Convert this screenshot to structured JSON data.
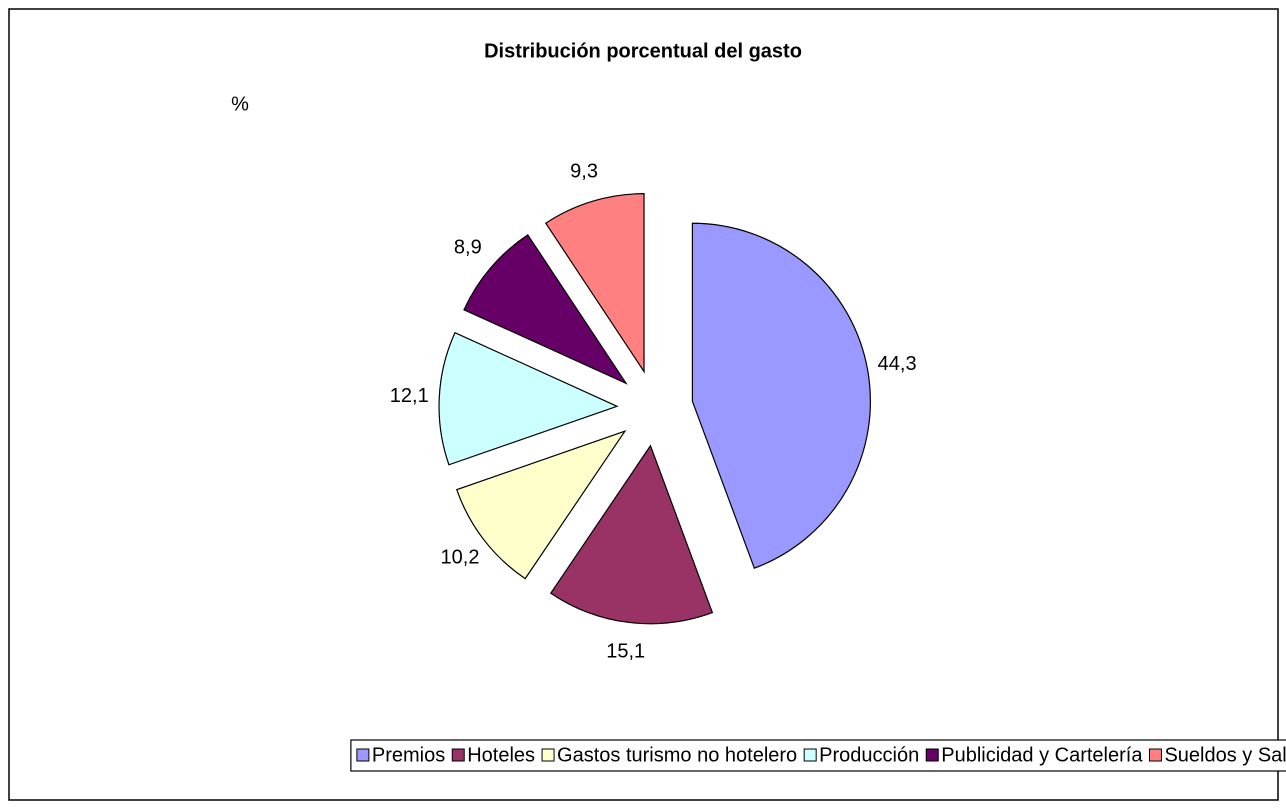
{
  "chart_data": {
    "type": "pie",
    "title": "Distribución porcentual del gasto",
    "subtitle": "%",
    "categories": [
      "Premios",
      "Hoteles",
      "Gastos turismo no hotelero",
      "Producción",
      "Publicidad y Cartelería",
      "Sueldos y Salarios"
    ],
    "values": [
      44.3,
      15.1,
      10.2,
      12.1,
      8.9,
      9.3
    ],
    "value_labels": [
      "44,3",
      "15,1",
      "10,2",
      "12,1",
      "8,9",
      "9,3"
    ],
    "colors": [
      "#9999ff",
      "#993366",
      "#ffffcc",
      "#ccffff",
      "#660066",
      "#ff8080"
    ],
    "legend": "bottom"
  }
}
